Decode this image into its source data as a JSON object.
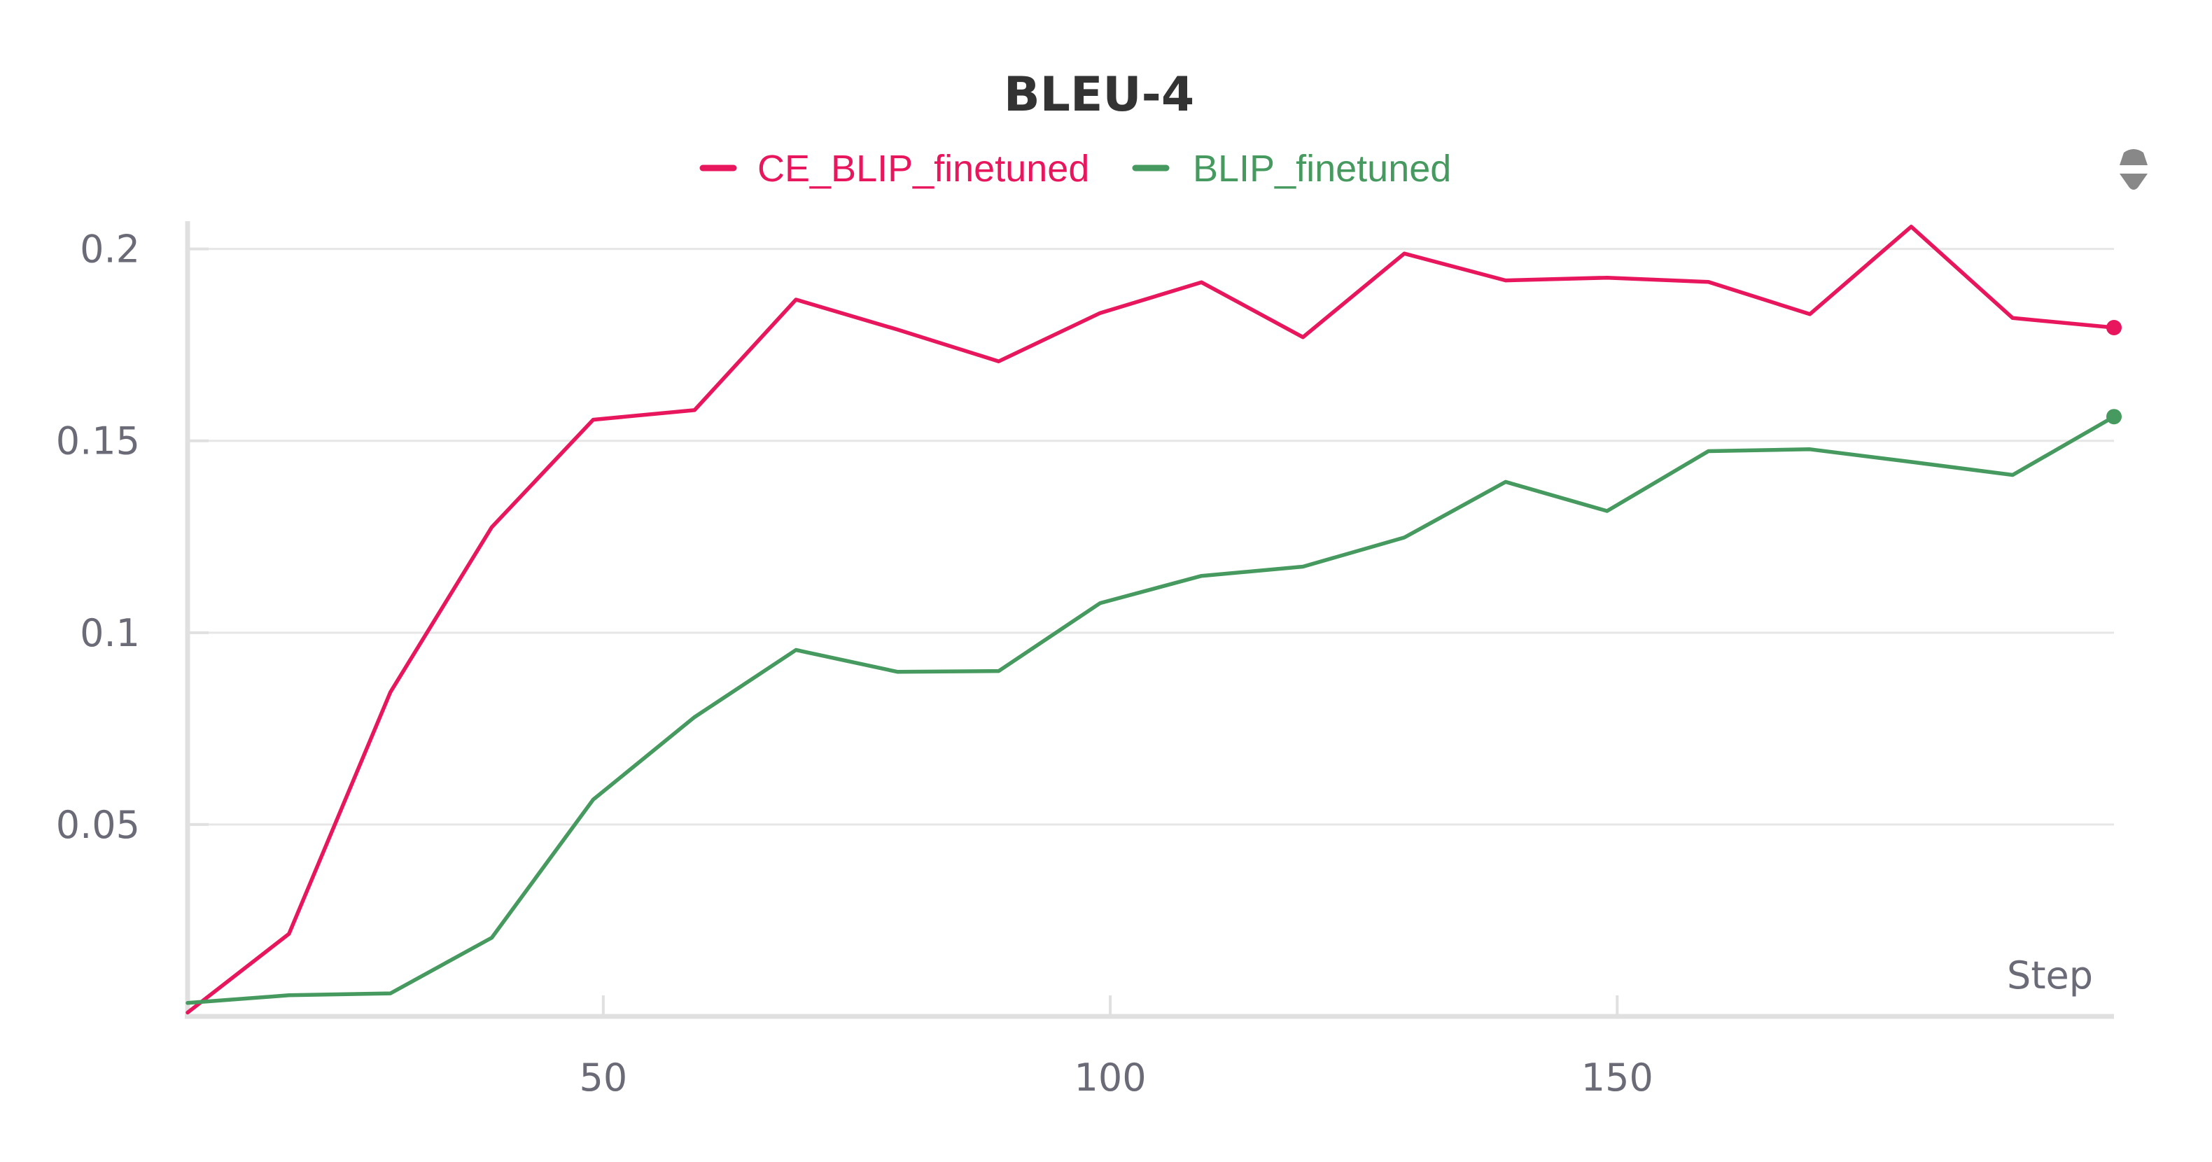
{
  "chart_data": {
    "type": "line",
    "title": "BLEU-4",
    "xlabel": "Step",
    "ylabel": "",
    "xlim": [
      9,
      199
    ],
    "ylim": [
      0.0,
      0.2065
    ],
    "x_ticks": [
      50,
      100,
      150
    ],
    "x_tick_labels": [
      "50",
      "100",
      "150"
    ],
    "y_ticks": [
      0.05,
      0.1,
      0.15,
      0.2
    ],
    "y_tick_labels": [
      "0.05",
      "0.1",
      "0.15",
      "0.2"
    ],
    "grid": true,
    "legend_position": "top-center",
    "x": [
      9,
      19,
      29,
      39,
      49,
      59,
      69,
      79,
      89,
      99,
      109,
      119,
      129,
      139,
      149,
      159,
      169,
      179,
      189,
      199
    ],
    "series": [
      {
        "name": "CE_BLIP_finetuned",
        "color": "#e8175d",
        "values": [
          0.001,
          0.0215,
          0.0845,
          0.1275,
          0.1555,
          0.158,
          0.1868,
          0.179,
          0.1707,
          0.1833,
          0.1913,
          0.177,
          0.1988,
          0.1918,
          0.1925,
          0.1914,
          0.183,
          0.2058,
          0.182,
          0.1795
        ]
      },
      {
        "name": "BLIP_finetuned",
        "color": "#479a5f",
        "values": [
          0.0035,
          0.0055,
          0.006,
          0.0205,
          0.0565,
          0.078,
          0.0955,
          0.0898,
          0.09,
          0.1077,
          0.1148,
          0.1172,
          0.1248,
          0.1393,
          0.1317,
          0.1473,
          0.1478,
          0.1445,
          0.1411,
          0.1563
        ]
      }
    ]
  },
  "ui": {
    "menu_icon": "drag-handle-icon",
    "menu_icon_color": "#888888"
  }
}
